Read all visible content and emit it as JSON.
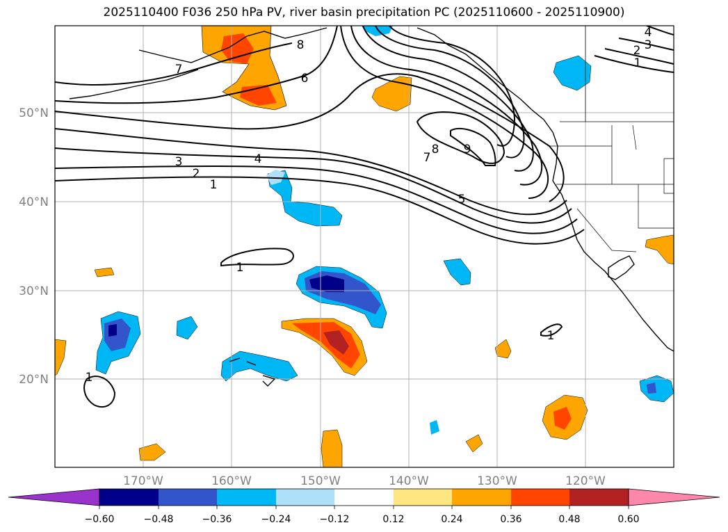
{
  "title": "2025110400 F036 250 hPa PV, river basin precipitation PC (2025110600 - 2025110900)",
  "lat_labels": [
    "50°N",
    "40°N",
    "30°N",
    "20°N"
  ],
  "lon_labels": [
    "170°W",
    "160°W",
    "150°W",
    "140°W",
    "130°W",
    "120°W"
  ],
  "contour_labels": [
    "8",
    "7",
    "6",
    "9",
    "8",
    "7",
    "4",
    "3",
    "2",
    "1",
    "5",
    "1",
    "1",
    "1",
    "4",
    "3",
    "2",
    "1"
  ],
  "colorbar": {
    "tick_labels": [
      "−0.60",
      "−0.48",
      "−0.36",
      "−0.24",
      "−0.12",
      "0.12",
      "0.24",
      "0.36",
      "0.48",
      "0.60"
    ],
    "colors": [
      "#9933cc",
      "#000088",
      "#3355cc",
      "#00b7f5",
      "#aee0fa",
      "#ffffff",
      "#ffe680",
      "#ffa500",
      "#ff4500",
      "#b22222",
      "#ff88aa"
    ]
  }
}
